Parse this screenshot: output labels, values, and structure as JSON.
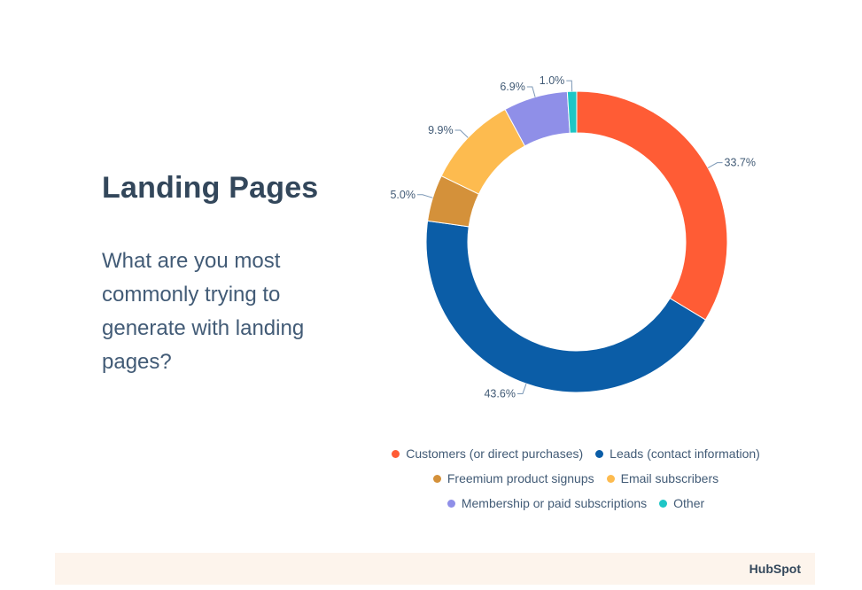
{
  "slide": {
    "title": "Landing Pages",
    "question": "What are you most commonly trying to generate with landing pages?",
    "brand": "HubSpot"
  },
  "chart_data": {
    "type": "pie",
    "variant": "donut",
    "title": "",
    "series": [
      {
        "name": "Customers (or direct purchases)",
        "value": 33.7,
        "label": "33.7%",
        "color": "#ff5c35"
      },
      {
        "name": "Leads (contact information)",
        "value": 43.6,
        "label": "43.6%",
        "color": "#0b5da7"
      },
      {
        "name": "Freemium product signups",
        "value": 5.0,
        "label": "5.0%",
        "color": "#d4913a"
      },
      {
        "name": "Email subscribers",
        "value": 9.9,
        "label": "9.9%",
        "color": "#fdbb4f"
      },
      {
        "name": "Membership or paid subscriptions",
        "value": 6.9,
        "label": "6.9%",
        "color": "#8f8fe8"
      },
      {
        "name": "Other",
        "value": 1.0,
        "label": "1.0%",
        "color": "#1ec6c6"
      }
    ],
    "legend_position": "bottom"
  }
}
